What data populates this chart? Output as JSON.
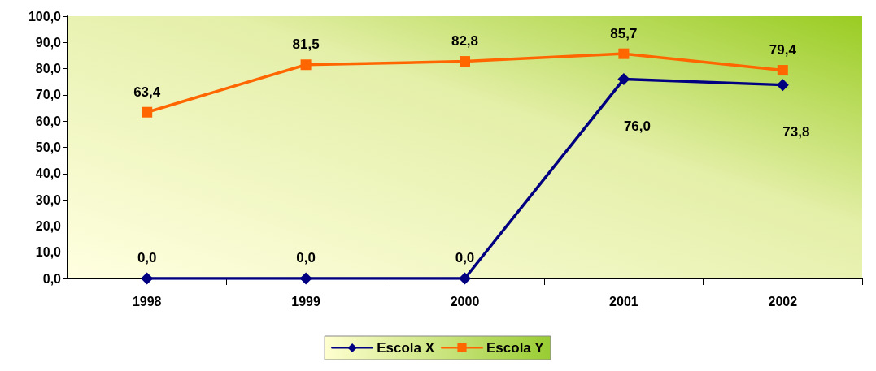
{
  "chart_data": {
    "type": "line",
    "categories": [
      "1998",
      "1999",
      "2000",
      "2001",
      "2002"
    ],
    "series": [
      {
        "name": "Escola X",
        "color": "#000080",
        "marker": "diamond",
        "values": [
          0,
          0,
          0,
          76.0,
          73.8
        ],
        "value_labels": [
          "0,0",
          "0,0",
          "0,0",
          "76,0",
          "73,8"
        ]
      },
      {
        "name": "Escola Y",
        "color": "#ff6600",
        "marker": "square",
        "values": [
          63.4,
          81.5,
          82.8,
          85.7,
          79.4
        ],
        "value_labels": [
          "63,4",
          "81,5",
          "82,8",
          "85,7",
          "79,4"
        ]
      }
    ],
    "ylim": [
      0,
      100
    ],
    "yticks": [
      {
        "value": 0,
        "label": "0,0"
      },
      {
        "value": 10,
        "label": "10,0"
      },
      {
        "value": 20,
        "label": "20,0"
      },
      {
        "value": 30,
        "label": "30,0"
      },
      {
        "value": 40,
        "label": "40,0"
      },
      {
        "value": 50,
        "label": "50,0"
      },
      {
        "value": 60,
        "label": "60,0"
      },
      {
        "value": 70,
        "label": "70,0"
      },
      {
        "value": 80,
        "label": "80,0"
      },
      {
        "value": 90,
        "label": "90,0"
      },
      {
        "value": 100,
        "label": "100,0"
      }
    ],
    "grid": false,
    "legend": "bottom",
    "line_style": "solid"
  }
}
